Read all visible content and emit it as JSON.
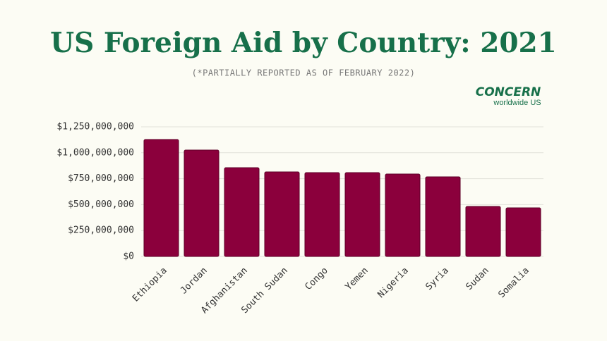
{
  "chart_data": {
    "type": "bar",
    "title": "US Foreign Aid by Country: 2021",
    "subtitle": "(*PARTIALLY REPORTED AS OF FEBRUARY 2022)",
    "categories": [
      "Ethiopia",
      "Jordan",
      "Afghanistan",
      "South Sudan",
      "Congo",
      "Yemen",
      "Nigeria",
      "Syria",
      "Sudan",
      "Somalia"
    ],
    "values": [
      1128000000,
      1026000000,
      856000000,
      815000000,
      808000000,
      808000000,
      795000000,
      768000000,
      482000000,
      469000000
    ],
    "color": "#8b003c",
    "ylim": [
      0,
      1250000000
    ],
    "yticks": [
      {
        "value": 0,
        "label": "$0"
      },
      {
        "value": 250000000,
        "label": "$250,000,000"
      },
      {
        "value": 500000000,
        "label": "$500,000,000"
      },
      {
        "value": 750000000,
        "label": "$750,000,000"
      },
      {
        "value": 1000000000,
        "label": "$1,000,000,000"
      },
      {
        "value": 1250000000,
        "label": "$1,250,000,000"
      }
    ],
    "grid": true
  },
  "logo": {
    "name": "CONCERN",
    "tagline": "worldwide US"
  }
}
